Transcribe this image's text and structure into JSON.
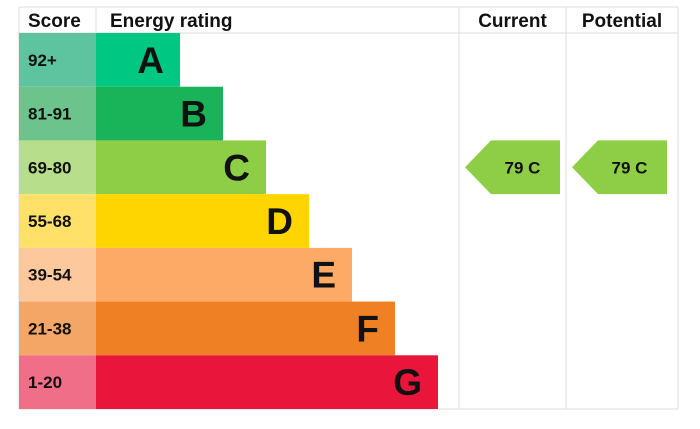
{
  "chart_data": {
    "type": "bar",
    "headers": {
      "score": "Score",
      "rating": "Energy rating",
      "current": "Current",
      "potential": "Potential"
    },
    "bands": [
      {
        "score": "92+",
        "letter": "A",
        "color": "#00c781",
        "score_color": "#5ec4a0"
      },
      {
        "score": "81-91",
        "letter": "B",
        "color": "#19b459",
        "score_color": "#6cc38c"
      },
      {
        "score": "69-80",
        "letter": "C",
        "color": "#8dce46",
        "score_color": "#b7de8b"
      },
      {
        "score": "55-68",
        "letter": "D",
        "color": "#ffd500",
        "score_color": "#ffe169"
      },
      {
        "score": "39-54",
        "letter": "E",
        "color": "#fcaa65",
        "score_color": "#fdc89c"
      },
      {
        "score": "21-38",
        "letter": "F",
        "color": "#ef8023",
        "score_color": "#f4a666"
      },
      {
        "score": "1-20",
        "letter": "G",
        "color": "#e9153b",
        "score_color": "#f06e87"
      }
    ],
    "current": {
      "value": 79,
      "band": "C",
      "label": "79  C"
    },
    "potential": {
      "value": 79,
      "band": "C",
      "label": "79  C"
    }
  }
}
